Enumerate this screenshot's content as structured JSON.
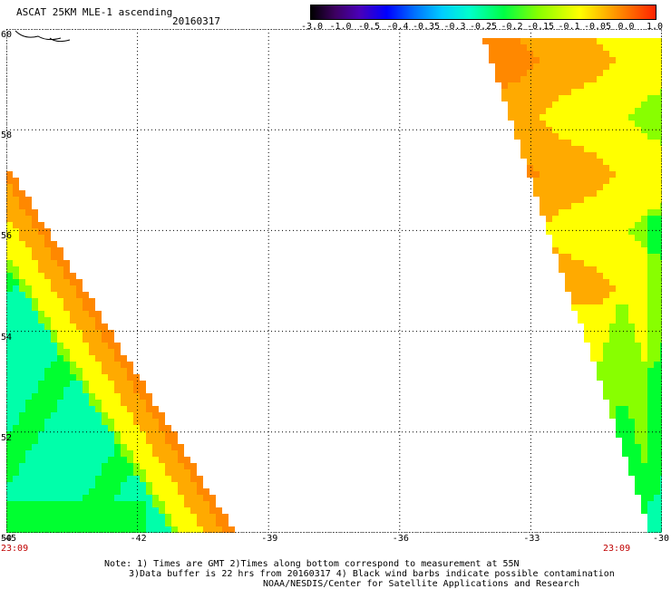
{
  "header": {
    "title": "ASCAT 25KM MLE-1 ascending",
    "date": "20160317"
  },
  "colorbar": {
    "ticks": [
      "-3.0",
      "-1.0",
      "-0.5",
      "-0.4",
      "-0.35",
      "-0.3",
      "-0.25",
      "-0.2",
      "-0.15",
      "-0.1",
      "-0.05",
      "0.0",
      "1.0"
    ]
  },
  "map": {
    "lat_range": [
      50,
      60
    ],
    "lon_range": [
      -45,
      -30
    ],
    "lat_labels": [
      "60",
      "58",
      "56",
      "54",
      "52",
      "50"
    ],
    "lon_labels": [
      "-45",
      "-42",
      "-39",
      "-36",
      "-33",
      "-30"
    ],
    "grid": true,
    "times": [
      "23:09",
      "23:09"
    ]
  },
  "notes": [
    "Note: 1) Times are GMT 2)Times along bottom correspond to measurement at 55N",
    "3)Data buffer is 22 hrs from 20160317 4) Black wind barbs indicate possible contamination",
    "NOAA/NESDIS/Center for Satellite Applications and Research"
  ]
}
